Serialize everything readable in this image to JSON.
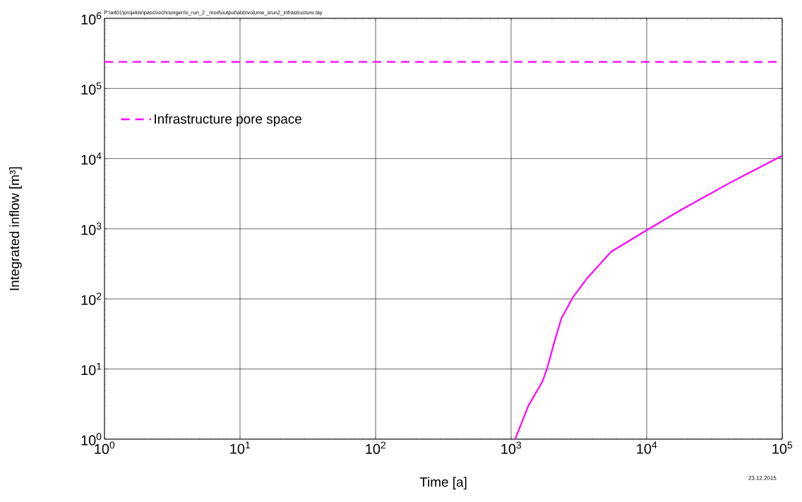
{
  "chart_data": {
    "type": "line",
    "xlabel": "Time [a]",
    "ylabel": "Integrated inflow [m³]",
    "annotations": [
      "P:\\a401\\projekte\\pass\\rechnungen\\s_run_2 _mod\\output\\abb\\volume_srun2_infrastructure.lay",
      "23.12.2015"
    ],
    "log": "xy",
    "grid": true,
    "legend": "top left",
    "xlim": [
      1,
      100000
    ],
    "ylim": [
      1,
      1000000
    ],
    "xticks": [
      {
        "value": 1,
        "label": "10$^{0}$"
      },
      {
        "value": 10,
        "label": "10$^{1}$"
      },
      {
        "value": 100,
        "label": "10$^{2}$"
      },
      {
        "value": 1000,
        "label": "10$^{3}$"
      },
      {
        "value": 10000,
        "label": "10$^{4}$"
      },
      {
        "value": 100000,
        "label": "10$^{5}$"
      }
    ],
    "yticks": [
      {
        "value": 1,
        "label": "10$^{0}$"
      },
      {
        "value": 10,
        "label": "10$^{1}$"
      },
      {
        "value": 100,
        "label": "10$^{2}$"
      },
      {
        "value": 1000,
        "label": "10$^{3}$"
      },
      {
        "value": 10000,
        "label": "10$^{4}$"
      },
      {
        "value": 100000,
        "label": "10$^{5}$"
      },
      {
        "value": 1000000,
        "label": "10$^{6}$"
      }
    ],
    "series": [
      {
        "color": "#ff00ff",
        "line_style": "solid",
        "x": [
          1070,
          1340,
          1700,
          1850,
          2080,
          2350,
          2870,
          3660,
          5470,
          10000,
          18300,
          40900,
          100000
        ],
        "values": [
          1,
          3.0,
          6.6,
          10.5,
          24,
          53,
          107,
          200,
          470,
          955,
          1900,
          4500,
          11000
        ]
      },
      {
        "name": "Infrastructure pore space",
        "color": "#ff00ff",
        "line_style": "dashed",
        "x": [
          1,
          100000
        ],
        "values": [
          240000,
          240000
        ]
      }
    ]
  }
}
